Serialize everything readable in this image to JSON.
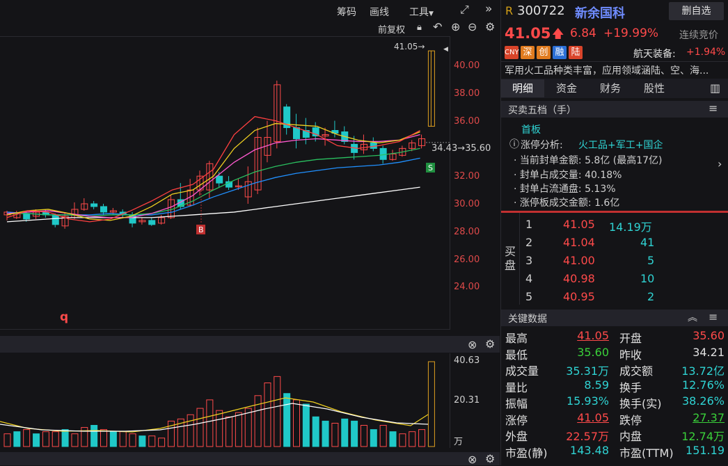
{
  "toolbar": {
    "chips": "筹码",
    "draw": "画线",
    "tools": "工具",
    "fq": "前复权",
    "expand_icon": "expand-icon",
    "collapse_icon": "chevrons-right-icon"
  },
  "price_axis": [
    "40.00",
    "38.00",
    "36.00",
    "34.00",
    "32.00",
    "30.00",
    "28.00",
    "26.00",
    "24.00"
  ],
  "annotations": {
    "last_price": "41.05→",
    "ref_line": "34.43→35.60",
    "buy_marker": "B",
    "sell_marker": "S",
    "q_marker": "q"
  },
  "volume_axis": [
    "40.63",
    "20.31",
    "万"
  ],
  "header": {
    "prefix": "R",
    "code": "300722",
    "name": "新余国科",
    "remove_watch": "删自选",
    "price": "41.05",
    "change": "6.84",
    "change_pct": "+19.99%",
    "auction": "连续竞价",
    "tags": [
      "CNY",
      "深",
      "创",
      "融",
      "陆"
    ],
    "sector": "航天装备:",
    "sector_pct": "+1.94%",
    "desc": "军用火工品种类丰富，应用领域涵陆、空、海..."
  },
  "tabs": [
    "明细",
    "资金",
    "财务",
    "股性"
  ],
  "orderbook_title": "买卖五档（手）",
  "limitup": {
    "first": "首板",
    "analysis_label": "涨停分析:",
    "concept": "火工品+军工+国企",
    "lines": [
      "· 当前封单金额: 5.8亿 (最高17亿)",
      "· 封单占成交量: 40.18%",
      "· 封单占流通盘: 5.13%",
      "· 涨停板成交金额: 1.6亿"
    ]
  },
  "bids_label": "买盘",
  "bids": [
    {
      "lvl": "1",
      "price": "41.05",
      "vol": "14.19万"
    },
    {
      "lvl": "2",
      "price": "41.04",
      "vol": "41"
    },
    {
      "lvl": "3",
      "price": "41.00",
      "vol": "5"
    },
    {
      "lvl": "4",
      "price": "40.98",
      "vol": "10"
    },
    {
      "lvl": "5",
      "price": "40.95",
      "vol": "2"
    }
  ],
  "keydata_title": "关键数据",
  "keydata": [
    [
      "最高",
      "41.05",
      "开盘",
      "35.60"
    ],
    [
      "最低",
      "35.60",
      "昨收",
      "34.21"
    ],
    [
      "成交量",
      "35.31万",
      "成交额",
      "13.72亿"
    ],
    [
      "量比",
      "8.59",
      "换手",
      "12.76%"
    ],
    [
      "振幅",
      "15.93%",
      "换手(实)",
      "38.26%"
    ],
    [
      "涨停",
      "41.05",
      "跌停",
      "27.37"
    ],
    [
      "外盘",
      "22.57万",
      "内盘",
      "12.74万"
    ],
    [
      "市盈(静)",
      "143.48",
      "市盈(TTM)",
      "151.19"
    ]
  ],
  "colors": {
    "up": "#ff4a4a",
    "down": "#2fd3d3",
    "bg": "#141417"
  }
}
